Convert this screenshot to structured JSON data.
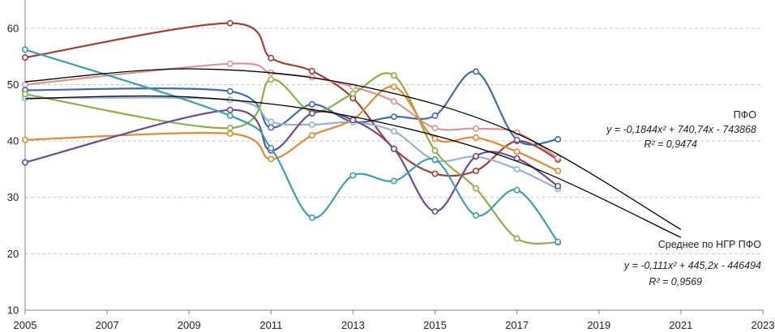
{
  "chart_data": {
    "type": "line",
    "title": "",
    "xlabel": "",
    "ylabel": "",
    "xlim": [
      2005,
      2023
    ],
    "ylim": [
      10,
      65
    ],
    "x_ticks": [
      "2005",
      "2007",
      "2009",
      "2011",
      "2013",
      "2015",
      "2017",
      "2019",
      "2021",
      "2023"
    ],
    "y_ticks": [
      "10",
      "20",
      "30",
      "40",
      "50",
      "60"
    ],
    "grid": "horizontal dashed",
    "x_points": [
      2005,
      2010,
      2011,
      2012,
      2013,
      2014,
      2015,
      2016,
      2017,
      2018
    ],
    "series": [
      {
        "name": "series-dark-red",
        "color": "#a0403b",
        "values": [
          54.8,
          60.9,
          54.7,
          52.4,
          47.6,
          38.6,
          34.2,
          34.7,
          40.0,
          36.7
        ]
      },
      {
        "name": "series-pink",
        "color": "#d99694",
        "values": [
          50.0,
          53.7,
          52.1,
          51.3,
          49.6,
          47.0,
          42.3,
          42.2,
          41.5,
          37.0
        ]
      },
      {
        "name": "series-dark-blue",
        "color": "#3f6ca8",
        "values": [
          49.0,
          48.8,
          42.4,
          46.5,
          43.4,
          44.3,
          44.5,
          52.3,
          40.2,
          40.3
        ]
      },
      {
        "name": "series-light-blue",
        "color": "#95b3d7",
        "values": [
          47.6,
          47.3,
          43.4,
          42.9,
          43.3,
          41.7,
          36.6,
          37.2,
          35.0,
          31.5
        ]
      },
      {
        "name": "series-green",
        "color": "#8eaf43",
        "values": [
          48.3,
          42.3,
          50.9,
          45.2,
          48.4,
          51.6,
          38.3,
          31.6,
          22.7,
          22.0
        ]
      },
      {
        "name": "series-orange",
        "color": "#e28a30",
        "values": [
          40.2,
          41.3,
          36.8,
          41.0,
          43.8,
          49.6,
          40.4,
          40.6,
          38.1,
          34.7
        ]
      },
      {
        "name": "series-purple",
        "color": "#6f4b8f",
        "values": [
          36.2,
          45.5,
          38.3,
          44.9,
          43.7,
          38.6,
          27.5,
          37.3,
          36.9,
          32.0
        ]
      },
      {
        "name": "series-teal",
        "color": "#3a9fb0",
        "values": [
          56.2,
          44.5,
          38.7,
          26.4,
          33.9,
          32.9,
          36.7,
          26.8,
          31.3,
          22.1
        ]
      }
    ],
    "trendlines": [
      {
        "name": "trend-pfo",
        "color": "#000000",
        "coefficients": [
          -0.1844,
          740.74,
          -743868
        ],
        "points": [
          [
            2005,
            50.5
          ],
          [
            2009,
            52.8
          ],
          [
            2013,
            50.0
          ],
          [
            2017,
            41.3
          ],
          [
            2021,
            24.3
          ]
        ]
      },
      {
        "name": "trend-average",
        "color": "#000000",
        "coefficients": [
          -0.111,
          445.2,
          -446494
        ],
        "points": [
          [
            2005,
            47.5
          ],
          [
            2009,
            47.8
          ],
          [
            2013,
            44.3
          ],
          [
            2017,
            36.4
          ],
          [
            2021,
            22.9
          ]
        ]
      }
    ],
    "annotations": {
      "pfo_label": "ПФО",
      "pfo_equation": "y = -0,1844x² + 740,74x - 743868",
      "pfo_r2": "R² = 0,9474",
      "avg_label": "Среднее по НГР ПФО",
      "avg_equation": "y = -0,111x² + 445,2x - 446494",
      "avg_r2": "R² = 0,9569"
    }
  }
}
